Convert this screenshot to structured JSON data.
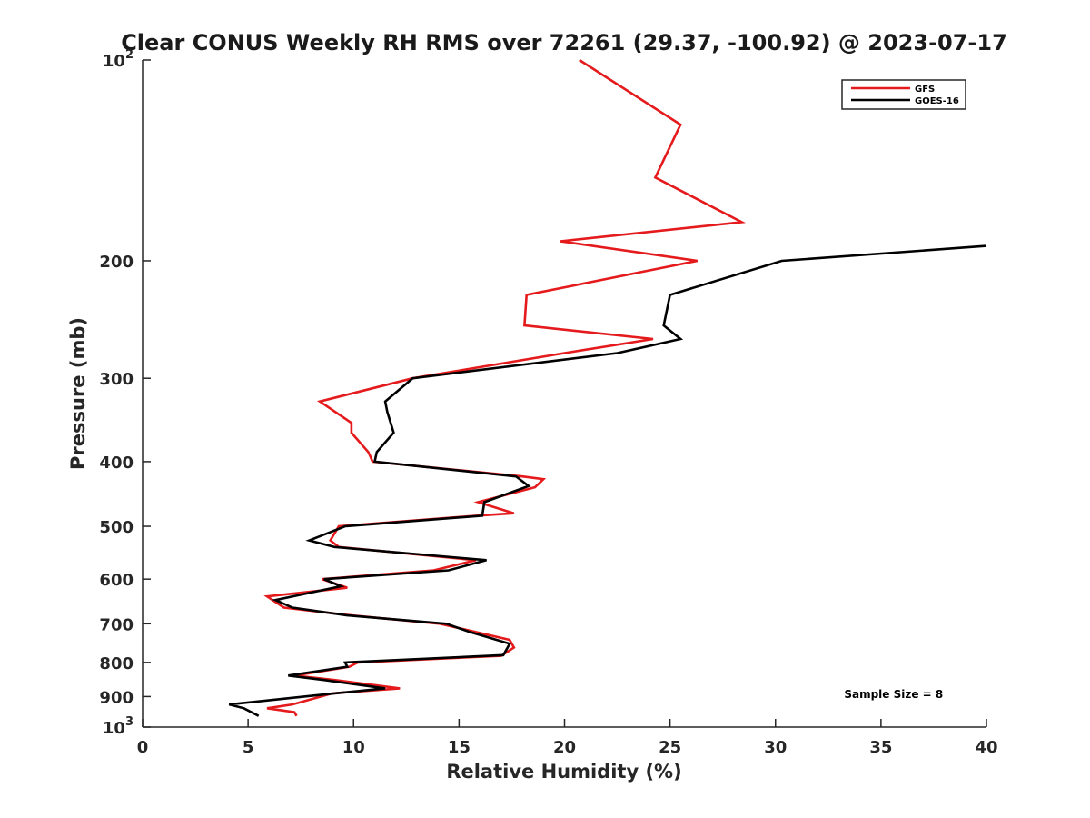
{
  "chart_data": {
    "type": "line",
    "title": "Clear CONUS Weekly RH RMS over 72261 (29.37, -100.92) @ 2023-07-17",
    "xlabel": "Relative Humidity (%)",
    "ylabel": "Pressure (mb)",
    "xlim": [
      0,
      40
    ],
    "ylim": [
      100,
      1000
    ],
    "y_scale": "log",
    "y_reversed": true,
    "grid": false,
    "legend_position": "top-right",
    "x_ticks": [
      0,
      5,
      10,
      15,
      20,
      25,
      30,
      35,
      40
    ],
    "x_tick_labels": [
      "0",
      "5",
      "10",
      "15",
      "20",
      "25",
      "30",
      "35",
      "40"
    ],
    "y_ticks": [
      100,
      200,
      300,
      400,
      500,
      600,
      700,
      800,
      900,
      1000
    ],
    "y_tick_labels": [
      {
        "base": "10",
        "exp": "2"
      },
      {
        "base": "200",
        "exp": ""
      },
      {
        "base": "300",
        "exp": ""
      },
      {
        "base": "400",
        "exp": ""
      },
      {
        "base": "500",
        "exp": ""
      },
      {
        "base": "600",
        "exp": ""
      },
      {
        "base": "700",
        "exp": ""
      },
      {
        "base": "800",
        "exp": ""
      },
      {
        "base": "900",
        "exp": ""
      },
      {
        "base": "10",
        "exp": "3"
      }
    ],
    "series": [
      {
        "name": "GFS",
        "color": "#e41a1c",
        "points": [
          {
            "x": 20.7,
            "y": 100
          },
          {
            "x": 25.5,
            "y": 125
          },
          {
            "x": 24.3,
            "y": 150
          },
          {
            "x": 28.4,
            "y": 175
          },
          {
            "x": 19.8,
            "y": 187
          },
          {
            "x": 26.3,
            "y": 200
          },
          {
            "x": 18.2,
            "y": 225
          },
          {
            "x": 18.1,
            "y": 250
          },
          {
            "x": 24.2,
            "y": 262
          },
          {
            "x": 20.0,
            "y": 275
          },
          {
            "x": 12.8,
            "y": 300
          },
          {
            "x": 8.4,
            "y": 325
          },
          {
            "x": 9.9,
            "y": 350
          },
          {
            "x": 9.9,
            "y": 362
          },
          {
            "x": 10.7,
            "y": 387
          },
          {
            "x": 10.9,
            "y": 400
          },
          {
            "x": 18.0,
            "y": 421
          },
          {
            "x": 19.0,
            "y": 425
          },
          {
            "x": 18.6,
            "y": 437
          },
          {
            "x": 15.9,
            "y": 460
          },
          {
            "x": 17.6,
            "y": 478
          },
          {
            "x": 15.8,
            "y": 482
          },
          {
            "x": 9.3,
            "y": 500
          },
          {
            "x": 8.9,
            "y": 525
          },
          {
            "x": 9.3,
            "y": 537
          },
          {
            "x": 15.8,
            "y": 562
          },
          {
            "x": 13.8,
            "y": 582
          },
          {
            "x": 8.5,
            "y": 600
          },
          {
            "x": 9.7,
            "y": 618
          },
          {
            "x": 5.9,
            "y": 637
          },
          {
            "x": 6.7,
            "y": 662
          },
          {
            "x": 9.9,
            "y": 680
          },
          {
            "x": 14.1,
            "y": 700
          },
          {
            "x": 17.4,
            "y": 740
          },
          {
            "x": 17.6,
            "y": 760
          },
          {
            "x": 17.0,
            "y": 782
          },
          {
            "x": 10.2,
            "y": 800
          },
          {
            "x": 9.8,
            "y": 812
          },
          {
            "x": 7.2,
            "y": 837
          },
          {
            "x": 9.1,
            "y": 850
          },
          {
            "x": 12.2,
            "y": 875
          },
          {
            "x": 9.0,
            "y": 890
          },
          {
            "x": 7.1,
            "y": 925
          },
          {
            "x": 5.9,
            "y": 937
          },
          {
            "x": 7.2,
            "y": 950
          },
          {
            "x": 7.3,
            "y": 962
          }
        ]
      },
      {
        "name": "GOES-16",
        "color": "#000000",
        "points": [
          {
            "x": 40.0,
            "y": 190
          },
          {
            "x": 30.3,
            "y": 200
          },
          {
            "x": 25.0,
            "y": 225
          },
          {
            "x": 24.7,
            "y": 250
          },
          {
            "x": 25.5,
            "y": 262
          },
          {
            "x": 22.5,
            "y": 275
          },
          {
            "x": 12.8,
            "y": 300
          },
          {
            "x": 11.5,
            "y": 325
          },
          {
            "x": 11.6,
            "y": 337
          },
          {
            "x": 11.9,
            "y": 362
          },
          {
            "x": 11.1,
            "y": 387
          },
          {
            "x": 11.0,
            "y": 400
          },
          {
            "x": 17.7,
            "y": 421
          },
          {
            "x": 18.3,
            "y": 435
          },
          {
            "x": 16.2,
            "y": 460
          },
          {
            "x": 16.1,
            "y": 482
          },
          {
            "x": 9.6,
            "y": 500
          },
          {
            "x": 7.9,
            "y": 525
          },
          {
            "x": 9.1,
            "y": 537
          },
          {
            "x": 16.3,
            "y": 562
          },
          {
            "x": 14.5,
            "y": 582
          },
          {
            "x": 8.6,
            "y": 600
          },
          {
            "x": 9.4,
            "y": 615
          },
          {
            "x": 6.3,
            "y": 645
          },
          {
            "x": 7.1,
            "y": 662
          },
          {
            "x": 9.7,
            "y": 680
          },
          {
            "x": 14.4,
            "y": 700
          },
          {
            "x": 15.5,
            "y": 720
          },
          {
            "x": 17.4,
            "y": 750
          },
          {
            "x": 17.3,
            "y": 760
          },
          {
            "x": 17.1,
            "y": 780
          },
          {
            "x": 9.6,
            "y": 800
          },
          {
            "x": 9.7,
            "y": 812
          },
          {
            "x": 6.9,
            "y": 837
          },
          {
            "x": 8.6,
            "y": 850
          },
          {
            "x": 11.5,
            "y": 875
          },
          {
            "x": 9.1,
            "y": 890
          },
          {
            "x": 4.1,
            "y": 925
          },
          {
            "x": 4.8,
            "y": 937
          },
          {
            "x": 5.5,
            "y": 962
          }
        ]
      }
    ],
    "annotations": [
      {
        "text": "Sample Size = 8",
        "x": 35.6,
        "y": 904
      }
    ]
  }
}
